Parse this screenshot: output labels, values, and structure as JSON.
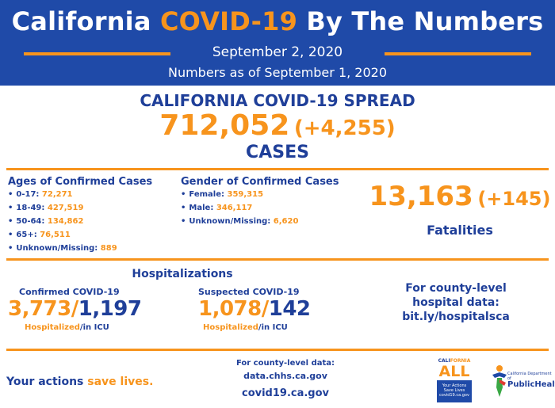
{
  "header": {
    "title_part1": "California",
    "title_accent": "COVID-19",
    "title_part2": "By The Numbers",
    "date": "September 2, 2020",
    "as_of": "Numbers as of September 1, 2020"
  },
  "spread": {
    "title": "CALIFORNIA COVID-19 SPREAD",
    "cases": "712,052",
    "cases_delta": "(+4,255)",
    "cases_label": "CASES"
  },
  "ages": {
    "title": "Ages of Confirmed Cases",
    "items": [
      {
        "label": "0-17:",
        "value": "72,271"
      },
      {
        "label": "18-49:",
        "value": "427,519"
      },
      {
        "label": "50-64:",
        "value": "134,862"
      },
      {
        "label": "65+:",
        "value": "76,511"
      },
      {
        "label": "Unknown/Missing:",
        "value": "889"
      }
    ]
  },
  "gender": {
    "title": "Gender of Confirmed Cases",
    "items": [
      {
        "label": "Female:",
        "value": "359,315"
      },
      {
        "label": "Male:",
        "value": "346,117"
      },
      {
        "label": "Unknown/Missing:",
        "value": "6,620"
      }
    ]
  },
  "fatalities": {
    "value": "13,163",
    "delta": "(+145)",
    "label": "Fatalities"
  },
  "hospitalizations": {
    "title": "Hospitalizations",
    "confirmed": {
      "label": "Confirmed COVID-19",
      "hospitalized": "3,773",
      "sep": "/",
      "icu": "1,197",
      "hosp_label": "Hospitalized",
      "icu_label": "/in ICU"
    },
    "suspected": {
      "label": "Suspected COVID-19",
      "hospitalized": "1,078",
      "sep": "/",
      "icu": "142",
      "hosp_label": "Hospitalized",
      "icu_label": "/in ICU"
    }
  },
  "county_hospital": {
    "line1": "For county-level",
    "line2": "hospital data:",
    "link": "bit.ly/hospitalsca"
  },
  "footer": {
    "actions_part1": "Your actions",
    "actions_part2": "save lives.",
    "county_data_label": "For county-level data:",
    "county_data_url": "data.chhs.ca.gov",
    "site_url": "covid19.ca.gov"
  },
  "logos": {
    "ca_all_top_part1": "CALI",
    "ca_all_top_part2": "FORNIA",
    "ca_all_word": "ALL",
    "ca_all_box_line1": "Your Actions",
    "ca_all_box_line2": "Save Lives",
    "ca_all_box_line3": "covid19.ca.gov",
    "cdph_small": "California Department of",
    "cdph_big": "PublicHealth"
  },
  "colors": {
    "header_bg": "#1f4aa8",
    "accent_orange": "#f7941d",
    "text_blue": "#1f3f99"
  }
}
